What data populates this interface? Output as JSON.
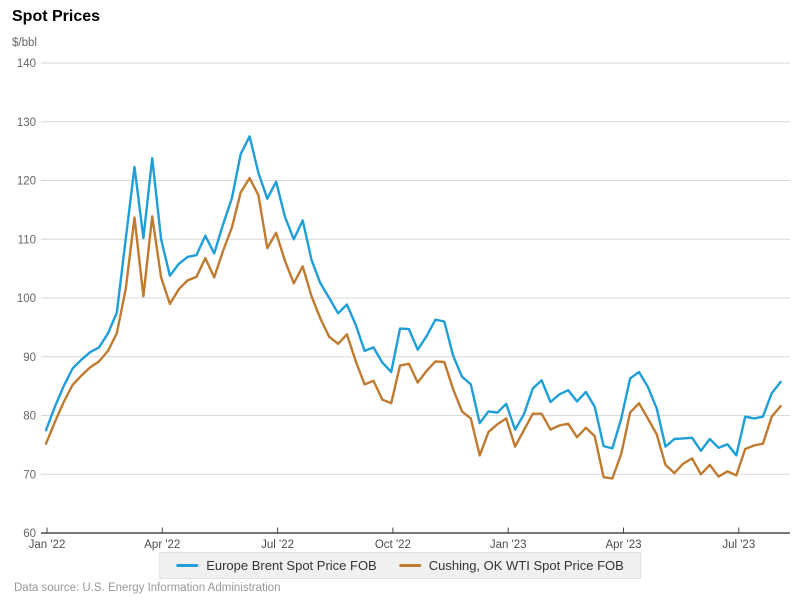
{
  "header": {
    "title": "Spot Prices",
    "units": "$/bbl"
  },
  "footer": {
    "source": "Data source: U.S. Energy Information Administration"
  },
  "legend": {
    "items": [
      {
        "label": "Europe Brent Spot Price FOB",
        "color": "#1f9ed8"
      },
      {
        "label": "Cushing, OK WTI Spot Price FOB",
        "color": "#bf7b30"
      }
    ]
  },
  "chart_data": {
    "type": "line",
    "title": "Spot Prices",
    "ylabel": "$/bbl",
    "ylim": [
      60,
      140
    ],
    "ytick_interval": 10,
    "ytick_labels": [
      "140",
      "130",
      "120",
      "110",
      "100",
      "90",
      "80",
      "70",
      "60"
    ],
    "grid": "horizontal",
    "legend_position": "bottom-center",
    "x_unit": "weekly",
    "x_range": [
      "2021-12-31",
      "2023-08-04"
    ],
    "x_tick_labels": [
      "Jan '22",
      "Apr '22",
      "Jul '22",
      "Oct '22",
      "Jan '23",
      "Apr '23",
      "Jul '23"
    ],
    "series": [
      {
        "name": "Europe Brent Spot Price FOB",
        "color": "#1f9ed8",
        "values": [
          77.5,
          81.5,
          85.0,
          88.0,
          89.5,
          90.8,
          91.6,
          94.0,
          97.5,
          110.0,
          122.3,
          110.2,
          123.8,
          110.0,
          103.8,
          105.8,
          107.0,
          107.3,
          110.6,
          107.6,
          112.5,
          117.0,
          124.5,
          127.5,
          121.3,
          116.9,
          119.8,
          113.8,
          110.0,
          113.2,
          106.5,
          102.5,
          100.0,
          97.4,
          98.9,
          95.4,
          91.0,
          91.6,
          89.0,
          87.4,
          94.8,
          94.7,
          91.2,
          93.5,
          96.3,
          96.0,
          90.2,
          86.6,
          85.3,
          78.7,
          80.7,
          80.5,
          82.0,
          77.6,
          80.2,
          84.6,
          86.0,
          82.3,
          83.6,
          84.3,
          82.4,
          84.0,
          81.5,
          74.8,
          74.4,
          79.5,
          86.3,
          87.4,
          84.9,
          81.2,
          74.7,
          76.0,
          76.1,
          76.2,
          74.0,
          76.0,
          74.5,
          75.1,
          73.2,
          79.8,
          79.5,
          79.8,
          83.8,
          85.7
        ]
      },
      {
        "name": "Cushing, OK WTI Spot Price FOB",
        "color": "#bf7b30",
        "values": [
          75.2,
          78.9,
          82.3,
          85.2,
          86.8,
          88.2,
          89.2,
          91.0,
          94.0,
          101.5,
          113.7,
          100.3,
          113.9,
          103.5,
          99.0,
          101.5,
          103.0,
          103.6,
          106.8,
          103.5,
          108.0,
          112.0,
          118.0,
          120.4,
          117.5,
          108.5,
          111.1,
          106.3,
          102.5,
          105.4,
          100.3,
          96.5,
          93.4,
          92.2,
          93.8,
          89.2,
          85.3,
          85.9,
          82.7,
          82.1,
          88.5,
          88.8,
          85.6,
          87.6,
          89.2,
          89.1,
          84.5,
          80.7,
          79.5,
          73.2,
          77.2,
          78.5,
          79.5,
          74.7,
          77.5,
          80.3,
          80.3,
          77.6,
          78.3,
          78.6,
          76.3,
          77.9,
          76.5,
          69.5,
          69.3,
          73.5,
          80.5,
          82.1,
          79.5,
          76.8,
          71.6,
          70.2,
          71.8,
          72.7,
          70.0,
          71.6,
          69.6,
          70.5,
          69.8,
          74.3,
          74.9,
          75.2,
          79.8,
          81.6
        ]
      }
    ]
  }
}
